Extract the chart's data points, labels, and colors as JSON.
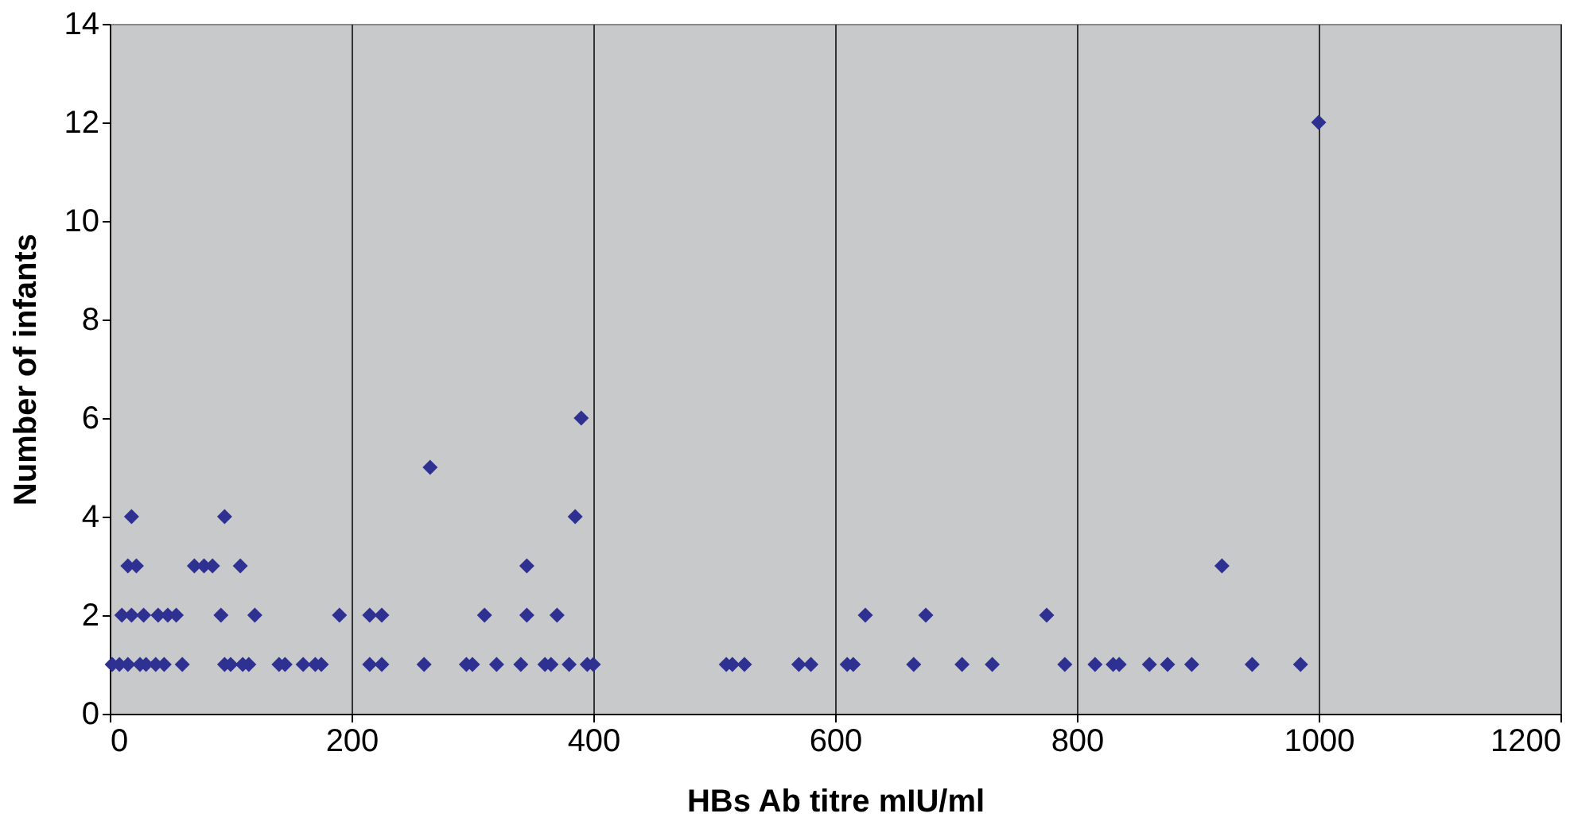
{
  "chart_data": {
    "type": "scatter",
    "xlabel": "HBs Ab titre mIU/ml",
    "ylabel": "Number of infants",
    "x": [
      2,
      8,
      15,
      25,
      30,
      38,
      45,
      60,
      95,
      100,
      110,
      115,
      140,
      145,
      160,
      170,
      175,
      215,
      225,
      260,
      295,
      300,
      320,
      340,
      360,
      365,
      380,
      395,
      400,
      510,
      515,
      525,
      570,
      580,
      610,
      615,
      665,
      705,
      730,
      790,
      815,
      830,
      835,
      860,
      875,
      895,
      945,
      985,
      10,
      18,
      28,
      40,
      48,
      55,
      92,
      120,
      190,
      215,
      225,
      310,
      345,
      370,
      625,
      675,
      775,
      15,
      22,
      70,
      78,
      85,
      108,
      345,
      920,
      18,
      95,
      385,
      265,
      390,
      1000
    ],
    "values": [
      1,
      1,
      1,
      1,
      1,
      1,
      1,
      1,
      1,
      1,
      1,
      1,
      1,
      1,
      1,
      1,
      1,
      1,
      1,
      1,
      1,
      1,
      1,
      1,
      1,
      1,
      1,
      1,
      1,
      1,
      1,
      1,
      1,
      1,
      1,
      1,
      1,
      1,
      1,
      1,
      1,
      1,
      1,
      1,
      1,
      1,
      1,
      1,
      2,
      2,
      2,
      2,
      2,
      2,
      2,
      2,
      2,
      2,
      2,
      2,
      2,
      2,
      2,
      2,
      2,
      3,
      3,
      3,
      3,
      3,
      3,
      3,
      3,
      4,
      4,
      4,
      5,
      6,
      12
    ],
    "color": "#2e3192",
    "marker": "diamond",
    "xlim": [
      0,
      1200
    ],
    "xticks": [
      0,
      200,
      400,
      600,
      800,
      1000,
      1200
    ],
    "ylim": [
      0,
      14
    ],
    "yticks": [
      0,
      2,
      4,
      6,
      8,
      10,
      12,
      14
    ],
    "grid": "x"
  }
}
